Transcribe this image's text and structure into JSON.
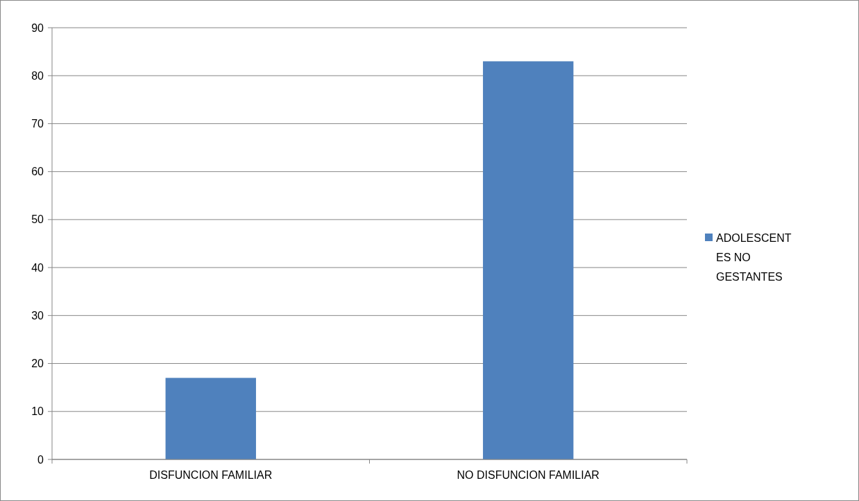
{
  "chart_data": {
    "type": "bar",
    "categories": [
      "DISFUNCION FAMILIAR",
      "NO DISFUNCION FAMILIAR"
    ],
    "series": [
      {
        "name": "ADOLESCENTES NO GESTANTES",
        "color": "#4f81bd",
        "values": [
          17,
          83
        ]
      }
    ],
    "ylim": [
      0,
      90
    ],
    "yticks": [
      0,
      10,
      20,
      30,
      40,
      50,
      60,
      70,
      80,
      90
    ],
    "grid": "y",
    "legend": "right"
  }
}
